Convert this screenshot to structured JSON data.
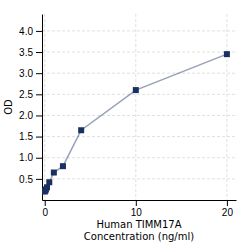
{
  "chart_data": {
    "type": "line",
    "x": [
      0,
      0.0625,
      0.125,
      0.25,
      0.5,
      1,
      2,
      4,
      10,
      20
    ],
    "series": [
      {
        "values": [
          0.2,
          0.22,
          0.25,
          0.3,
          0.42,
          0.65,
          0.8,
          1.65,
          2.6,
          3.45
        ],
        "color": "#1a3060",
        "marker": "square"
      }
    ],
    "xlabel": [
      "Human TIMM17A",
      "Concentration (ng/ml)"
    ],
    "ylabel": "OD",
    "xlim": [
      -0.3,
      21
    ],
    "ylim": [
      0,
      4.4
    ],
    "xticks": [
      0,
      10,
      20
    ],
    "yticks": [
      {
        "value": 0.5,
        "label": "0.5"
      },
      {
        "value": 1.0,
        "label": "1.0"
      },
      {
        "value": 1.5,
        "label": "1.5"
      },
      {
        "value": 2.0,
        "label": "2.0"
      },
      {
        "value": 2.5,
        "label": "2.5"
      },
      {
        "value": 3.0,
        "label": "3.0"
      },
      {
        "value": 3.5,
        "label": "3.5"
      },
      {
        "value": 4.0,
        "label": "4.0"
      }
    ],
    "grid": true
  }
}
